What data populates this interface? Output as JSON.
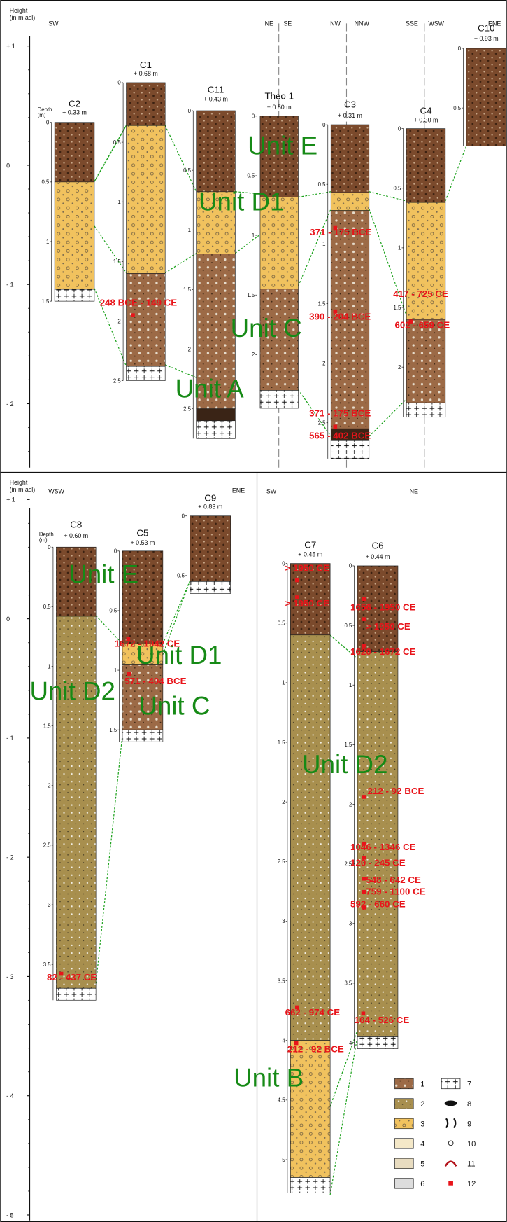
{
  "top_panel": {
    "height_axis": {
      "title": [
        "Height",
        "(in m asl)"
      ],
      "ticks": [
        "+ 1",
        "0",
        "- 1",
        "- 2"
      ]
    },
    "directions": [
      "SW",
      "NE",
      "SE",
      "NW",
      "NNW",
      "SSE",
      "WSW",
      "ENE"
    ],
    "columns": [
      {
        "name": "C2",
        "elevation": "+ 0.33 m",
        "depth_title": [
          "Depth",
          "(m)"
        ],
        "depth_ticks": [
          "0",
          "0.5",
          "1",
          "1.5"
        ]
      },
      {
        "name": "C1",
        "elevation": "+ 0.68 m",
        "depth_ticks": [
          "0",
          "0.5",
          "1",
          "1.5",
          "2",
          "2.5"
        ]
      },
      {
        "name": "C11",
        "elevation": "+ 0.43 m",
        "depth_ticks": [
          "0",
          "0.5",
          "1",
          "1.5",
          "2",
          "2.5"
        ]
      },
      {
        "name": "Theo 1",
        "elevation": "+ 0.50 m",
        "depth_ticks": [
          "0",
          "0.5",
          "1",
          "1.5",
          "2"
        ]
      },
      {
        "name": "C3",
        "elevation": "+ 0.31 m",
        "depth_ticks": [
          "0",
          "0.5",
          "1",
          "1.5",
          "2",
          "2.5"
        ]
      },
      {
        "name": "C4",
        "elevation": "+ 0.30 m",
        "depth_ticks": [
          "0",
          "0.5",
          "1",
          "1.5",
          "2"
        ]
      },
      {
        "name": "C10",
        "elevation": "+ 0.93 m",
        "depth_ticks": [
          "0",
          "0.5"
        ]
      }
    ],
    "units": [
      "Unit E",
      "Unit D1",
      "Unit C",
      "Unit A"
    ],
    "dates": [
      "248 BCE - 149 CE",
      "371 - 175 BCE",
      "390 - 204 BCE",
      "417 - 725 CE",
      "602 - 659 CE",
      "371 - 175 BCE",
      "565 - 402 BCE"
    ]
  },
  "bottom_panel": {
    "height_axis": {
      "title": [
        "Height",
        "(in m asl)"
      ],
      "ticks": [
        "+ 1",
        "0",
        "- 1",
        "- 2",
        "- 3",
        "- 4",
        "- 5"
      ]
    },
    "directions": [
      "WSW",
      "ENE",
      "SW",
      "NE"
    ],
    "columns": [
      {
        "name": "C8",
        "elevation": "+ 0.60 m",
        "depth_title": [
          "Depth",
          "(m)"
        ],
        "depth_ticks": [
          "0",
          "0.5",
          "1",
          "1.5",
          "2",
          "2.5",
          "3",
          "3.5"
        ]
      },
      {
        "name": "C5",
        "elevation": "+ 0.53 m",
        "depth_ticks": [
          "0",
          "0.5",
          "1",
          "1.5"
        ]
      },
      {
        "name": "C9",
        "elevation": "+ 0.83 m",
        "depth_ticks": [
          "0",
          "0.5"
        ]
      },
      {
        "name": "C7",
        "elevation": "+ 0.45 m",
        "depth_ticks": [
          "0",
          "0.5",
          "1",
          "1.5",
          "2",
          "2.5",
          "3",
          "3.5",
          "4",
          "4.5",
          "5"
        ]
      },
      {
        "name": "C6",
        "elevation": "+ 0.44 m",
        "depth_ticks": [
          "0",
          "0.5",
          "1",
          "1.5",
          "2",
          "2.5",
          "3",
          "3.5",
          "4"
        ]
      }
    ],
    "units": [
      "Unit E",
      "Unit D1",
      "Unit D2",
      "Unit C",
      "Unit D2",
      "Unit B"
    ],
    "dates": [
      "1672 - 1942 CE",
      "571 - 404 BCE",
      "82 - 437 CE",
      "> 1950 CE",
      "> 1950 CE",
      "1656 - 1950 CE",
      "> 1950 CE",
      "1620 - 1672 CE",
      "212 - 92 BCE",
      "1046 - 1346 CE",
      "120 - 245 CE",
      "548 - 642 CE",
      "759 - 1100 CE",
      "592 - 660 CE",
      "662 - 974 CE",
      "164 - 526  CE",
      "212 - 92 BCE"
    ]
  },
  "legend": {
    "items": [
      "1",
      "2",
      "3",
      "4",
      "5",
      "6",
      "7",
      "8",
      "9",
      "10",
      "11",
      "12"
    ]
  }
}
